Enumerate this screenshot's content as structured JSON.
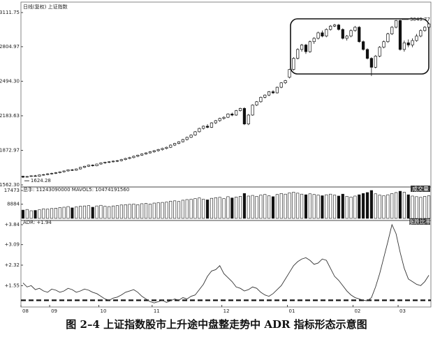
{
  "chart_data": [
    {
      "type": "candlestick",
      "title": "日线(复权)  上证指数",
      "ylim": [
        1562.3,
        3111.75
      ],
      "yticks": [
        {
          "value": 1562.3,
          "label": "1562.30"
        },
        1872.97,
        2183.63,
        {
          "value": 2494.3,
          "label": "2494.30"
        },
        2804.97,
        3111.75
      ],
      "xlim": [
        0,
        100
      ],
      "xticks": [
        {
          "value": 0,
          "label": "08"
        },
        {
          "value": 7,
          "label": "09"
        },
        {
          "value": 19,
          "label": "10"
        },
        {
          "value": 32,
          "label": "11"
        },
        {
          "value": 49,
          "label": "12"
        },
        {
          "value": 65,
          "label": "01"
        },
        {
          "value": 81,
          "label": "02"
        },
        {
          "value": 92,
          "label": "03"
        }
      ],
      "low_label": "1624.28",
      "high_label": "3049.77",
      "ohlc": [
        [
          1640,
          1645,
          1624.28,
          1632
        ],
        [
          1632,
          1642,
          1628,
          1638
        ],
        [
          1638,
          1648,
          1634,
          1644
        ],
        [
          1644,
          1652,
          1638,
          1640
        ],
        [
          1640,
          1655,
          1636,
          1652
        ],
        [
          1652,
          1660,
          1646,
          1655
        ],
        [
          1655,
          1668,
          1650,
          1662
        ],
        [
          1662,
          1672,
          1656,
          1666
        ],
        [
          1666,
          1678,
          1660,
          1672
        ],
        [
          1672,
          1684,
          1666,
          1680
        ],
        [
          1680,
          1692,
          1674,
          1688
        ],
        [
          1688,
          1702,
          1682,
          1698
        ],
        [
          1698,
          1704,
          1688,
          1694
        ],
        [
          1694,
          1710,
          1690,
          1706
        ],
        [
          1706,
          1724,
          1700,
          1720
        ],
        [
          1720,
          1734,
          1714,
          1730
        ],
        [
          1730,
          1744,
          1724,
          1740
        ],
        [
          1740,
          1746,
          1728,
          1734
        ],
        [
          1734,
          1754,
          1730,
          1750
        ],
        [
          1750,
          1764,
          1744,
          1760
        ],
        [
          1760,
          1770,
          1752,
          1766
        ],
        [
          1766,
          1776,
          1758,
          1770
        ],
        [
          1770,
          1782,
          1764,
          1776
        ],
        [
          1776,
          1786,
          1768,
          1780
        ],
        [
          1780,
          1796,
          1774,
          1790
        ],
        [
          1790,
          1806,
          1784,
          1800
        ],
        [
          1800,
          1814,
          1794,
          1808
        ],
        [
          1808,
          1826,
          1802,
          1820
        ],
        [
          1820,
          1834,
          1812,
          1830
        ],
        [
          1830,
          1846,
          1824,
          1840
        ],
        [
          1840,
          1856,
          1834,
          1850
        ],
        [
          1850,
          1866,
          1844,
          1860
        ],
        [
          1860,
          1876,
          1852,
          1870
        ],
        [
          1870,
          1886,
          1862,
          1880
        ],
        [
          1880,
          1896,
          1872,
          1890
        ],
        [
          1890,
          1906,
          1882,
          1900
        ],
        [
          1900,
          1926,
          1894,
          1920
        ],
        [
          1920,
          1940,
          1912,
          1935
        ],
        [
          1935,
          1956,
          1928,
          1950
        ],
        [
          1950,
          1976,
          1944,
          1970
        ],
        [
          1970,
          1996,
          1962,
          1990
        ],
        [
          1990,
          2016,
          1984,
          2010
        ],
        [
          2010,
          2046,
          2004,
          2040
        ],
        [
          2040,
          2076,
          2034,
          2070
        ],
        [
          2070,
          2096,
          2060,
          2090
        ],
        [
          2090,
          2108,
          2072,
          2080
        ],
        [
          2080,
          2126,
          2074,
          2120
        ],
        [
          2120,
          2146,
          2110,
          2140
        ],
        [
          2140,
          2166,
          2130,
          2160
        ],
        [
          2160,
          2178,
          2150,
          2170
        ],
        [
          2170,
          2206,
          2164,
          2200
        ],
        [
          2200,
          2212,
          2180,
          2190
        ],
        [
          2190,
          2236,
          2184,
          2230
        ],
        [
          2230,
          2256,
          2222,
          2250
        ],
        [
          2250,
          2260,
          2100,
          2110
        ],
        [
          2110,
          2200,
          2100,
          2190
        ],
        [
          2190,
          2286,
          2184,
          2280
        ],
        [
          2280,
          2316,
          2272,
          2310
        ],
        [
          2310,
          2356,
          2302,
          2350
        ],
        [
          2350,
          2376,
          2340,
          2370
        ],
        [
          2370,
          2406,
          2360,
          2400
        ],
        [
          2400,
          2414,
          2380,
          2390
        ],
        [
          2390,
          2446,
          2384,
          2440
        ],
        [
          2440,
          2486,
          2432,
          2480
        ],
        [
          2480,
          2506,
          2470,
          2500
        ],
        [
          2530,
          2606,
          2520,
          2600
        ],
        [
          2600,
          2710,
          2590,
          2700
        ],
        [
          2700,
          2790,
          2690,
          2780
        ],
        [
          2780,
          2830,
          2760,
          2820
        ],
        [
          2820,
          2830,
          2740,
          2760
        ],
        [
          2760,
          2860,
          2750,
          2850
        ],
        [
          2850,
          2890,
          2830,
          2880
        ],
        [
          2880,
          2940,
          2870,
          2930
        ],
        [
          2930,
          2950,
          2890,
          2900
        ],
        [
          2900,
          2970,
          2890,
          2960
        ],
        [
          2960,
          3000,
          2950,
          2990
        ],
        [
          2990,
          3010,
          2980,
          3000
        ],
        [
          3000,
          3010,
          2950,
          2960
        ],
        [
          2960,
          2970,
          2870,
          2880
        ],
        [
          2880,
          2910,
          2860,
          2900
        ],
        [
          2900,
          2960,
          2890,
          2950
        ],
        [
          2950,
          2990,
          2940,
          2980
        ],
        [
          2980,
          2990,
          2840,
          2850
        ],
        [
          2850,
          2860,
          2770,
          2780
        ],
        [
          2780,
          2790,
          2690,
          2700
        ],
        [
          2700,
          2710,
          2541,
          2620
        ],
        [
          2620,
          2730,
          2610,
          2720
        ],
        [
          2720,
          2810,
          2710,
          2800
        ],
        [
          2800,
          2860,
          2790,
          2850
        ],
        [
          2850,
          2930,
          2840,
          2920
        ],
        [
          2920,
          2990,
          2910,
          2980
        ],
        [
          2980,
          3045,
          2970,
          3040
        ],
        [
          3040,
          3049.77,
          2770,
          2780
        ],
        [
          2780,
          2860,
          2760,
          2840
        ],
        [
          2840,
          2870,
          2800,
          2820
        ],
        [
          2820,
          2880,
          2800,
          2860
        ],
        [
          2860,
          2920,
          2850,
          2900
        ],
        [
          2900,
          2960,
          2890,
          2950
        ],
        [
          2950,
          2990,
          2940,
          2980
        ],
        [
          2980,
          3020,
          2970,
          3010
        ]
      ]
    },
    {
      "type": "bar",
      "title": "总手: 11243090000  MAVOL5: 10474191560",
      "tag": "成交量",
      "ylim": [
        0,
        17473
      ],
      "yticks": [
        8884,
        17473
      ],
      "values": [
        5200,
        5600,
        4800,
        5000,
        5400,
        6000,
        5800,
        6200,
        6400,
        6800,
        7000,
        7400,
        6600,
        7200,
        7600,
        7800,
        8000,
        7000,
        7800,
        8200,
        7600,
        7400,
        7800,
        8000,
        8400,
        8600,
        8800,
        9000,
        8600,
        9200,
        9400,
        9000,
        9600,
        9800,
        10000,
        10200,
        10800,
        11000,
        10600,
        11400,
        11800,
        12000,
        12400,
        12800,
        12000,
        11600,
        12600,
        13000,
        13200,
        12400,
        13600,
        12800,
        13400,
        13800,
        15600,
        14000,
        14400,
        13800,
        14600,
        15000,
        14200,
        13600,
        15000,
        15600,
        15200,
        16000,
        16400,
        15800,
        15200,
        14800,
        15400,
        15000,
        14600,
        14200,
        14800,
        15200,
        14600,
        14000,
        15200,
        13800,
        13400,
        14000,
        14800,
        15600,
        16200,
        17473,
        15400,
        14600,
        14200,
        14800,
        15600,
        16200,
        17000,
        16400,
        14800,
        14000,
        13600,
        13200,
        13800,
        14200
      ]
    },
    {
      "type": "line",
      "title": "ADR: +1.94",
      "tag": "涨跌比率",
      "ylim": [
        0.8,
        3.84
      ],
      "reference": 1.0,
      "yticks": [
        {
          "value": 1.55,
          "label": "+1.55"
        },
        {
          "value": 2.32,
          "label": "+2.32"
        },
        {
          "value": 3.09,
          "label": "+3.09"
        },
        {
          "value": 3.84,
          "label": "+3.84"
        }
      ],
      "values": [
        1.65,
        1.5,
        1.55,
        1.4,
        1.45,
        1.35,
        1.3,
        1.42,
        1.38,
        1.3,
        1.35,
        1.45,
        1.4,
        1.3,
        1.35,
        1.42,
        1.38,
        1.3,
        1.25,
        1.15,
        1.05,
        1.0,
        1.08,
        1.12,
        1.2,
        1.3,
        1.35,
        1.4,
        1.3,
        1.15,
        1.05,
        0.95,
        0.9,
        0.95,
        1.0,
        0.92,
        0.98,
        1.05,
        1.0,
        1.1,
        1.05,
        1.15,
        1.2,
        1.4,
        1.6,
        1.9,
        2.1,
        2.15,
        2.3,
        2.0,
        1.85,
        1.7,
        1.5,
        1.45,
        1.35,
        1.4,
        1.5,
        1.45,
        1.3,
        1.2,
        1.15,
        1.25,
        1.4,
        1.55,
        1.8,
        2.05,
        2.3,
        2.45,
        2.55,
        2.6,
        2.5,
        2.35,
        2.4,
        2.55,
        2.5,
        2.2,
        1.9,
        1.75,
        1.55,
        1.35,
        1.2,
        1.1,
        1.05,
        1.0,
        0.98,
        1.1,
        1.5,
        2.0,
        2.6,
        3.2,
        3.84,
        3.5,
        2.8,
        2.2,
        1.8,
        1.7,
        1.6,
        1.55,
        1.7,
        1.94
      ]
    }
  ],
  "caption": "图 2–4   上证指数股市上升途中盘整走势中 ADR 指标形态示意图"
}
